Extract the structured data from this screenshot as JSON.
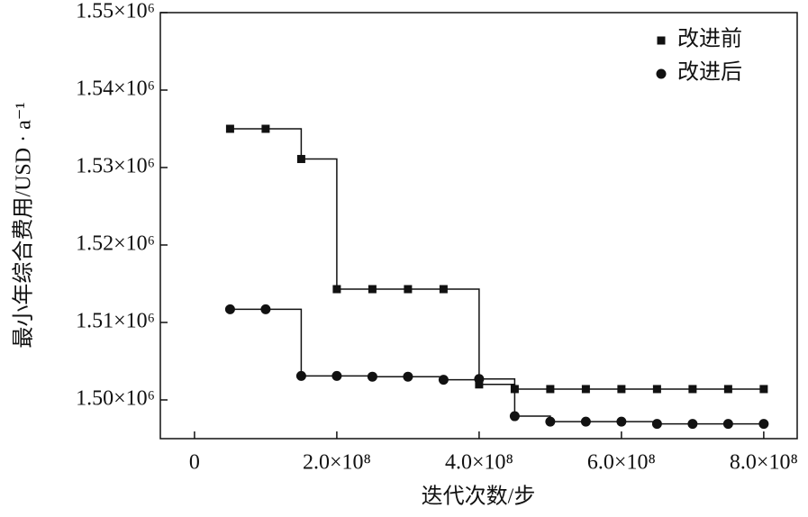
{
  "chart_data": {
    "type": "line",
    "x_label": "迭代次数/步",
    "y_label": "最小年综合费用/USD · a⁻¹",
    "xlim": [
      -48000000,
      847000000
    ],
    "ylim": [
      1495000,
      1550000
    ],
    "xticks": [
      0,
      {
        "value": 200000000,
        "label": "2.0×10⁸"
      },
      {
        "value": 400000000,
        "label": "4.0×10⁸"
      },
      {
        "value": 600000000,
        "label": "6.0×10⁸"
      },
      {
        "value": 800000000,
        "label": "8.0×10⁸"
      }
    ],
    "yticks": [
      {
        "value": 1500000,
        "label": "1.50×10⁶"
      },
      {
        "value": 1510000,
        "label": "1.51×10⁶"
      },
      {
        "value": 1520000,
        "label": "1.52×10⁶"
      },
      {
        "value": 1530000,
        "label": "1.53×10⁶"
      },
      {
        "value": 1540000,
        "label": "1.54×10⁶"
      },
      {
        "value": 1550000,
        "label": "1.55×10⁶"
      }
    ],
    "legend_position": "upper right",
    "series": [
      {
        "name": "改进前",
        "color": "#111111",
        "marker": "square",
        "x": [
          50000000,
          100000000,
          150000000,
          200000000,
          250000000,
          300000000,
          350000000,
          400000000,
          450000000,
          500000000,
          550000000,
          600000000,
          650000000,
          700000000,
          750000000,
          800000000
        ],
        "values": [
          1535000,
          1535000,
          1531100,
          1514300,
          1514300,
          1514300,
          1514300,
          1502000,
          1501400,
          1501400,
          1501400,
          1501400,
          1501400,
          1501400,
          1501400,
          1501400
        ]
      },
      {
        "name": "改进后",
        "color": "#111111",
        "marker": "circle",
        "x": [
          50000000,
          100000000,
          150000000,
          200000000,
          250000000,
          300000000,
          350000000,
          400000000,
          450000000,
          500000000,
          550000000,
          600000000,
          650000000,
          700000000,
          750000000,
          800000000
        ],
        "values": [
          1511700,
          1511700,
          1503100,
          1503100,
          1503000,
          1503000,
          1502600,
          1502700,
          1497900,
          1497200,
          1497200,
          1497200,
          1496900,
          1496900,
          1496900,
          1496900
        ]
      }
    ]
  }
}
